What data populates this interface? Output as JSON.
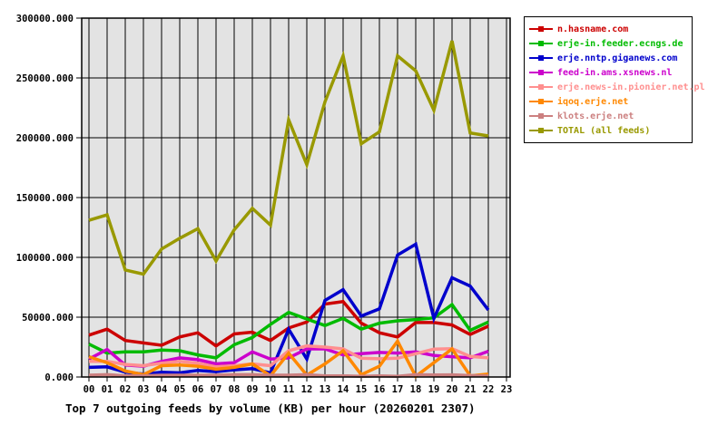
{
  "chart_data": {
    "type": "line",
    "title": "Top 7 outgoing feeds by volume (KB) per hour (20260201 2307)",
    "xlabel": "",
    "ylabel": "",
    "ylim": [
      0,
      300000
    ],
    "grid": true,
    "legend_position": "right",
    "plot_bg": "#e3e3e3",
    "grid_color": "#000000",
    "x_tick_labels": [
      "00",
      "01",
      "02",
      "03",
      "04",
      "05",
      "06",
      "07",
      "08",
      "09",
      "10",
      "11",
      "12",
      "13",
      "14",
      "15",
      "16",
      "17",
      "18",
      "19",
      "20",
      "21",
      "22",
      "23"
    ],
    "y_tick_labels": [
      "0.000",
      "50000.000",
      "100000.000",
      "150000.000",
      "200000.000",
      "250000.000",
      "300000.000"
    ],
    "y_tick_values": [
      0,
      50000,
      100000,
      150000,
      200000,
      250000,
      300000
    ],
    "series": [
      {
        "name": "n.hasname.com",
        "color": "#cc0000",
        "values": [
          35000,
          40000,
          30500,
          28500,
          26500,
          33500,
          37000,
          26000,
          36000,
          37500,
          30500,
          41000,
          46000,
          61000,
          63000,
          45000,
          37000,
          33500,
          45500,
          45500,
          43500,
          35500,
          42500
        ]
      },
      {
        "name": "erje-in.feeder.ecngs.de",
        "color": "#00bb00",
        "values": [
          27500,
          20000,
          21000,
          21000,
          22500,
          22000,
          18500,
          16000,
          27000,
          33000,
          44000,
          54000,
          48500,
          43000,
          49000,
          40000,
          45000,
          47000,
          48000,
          49500,
          60500,
          39000,
          46000
        ]
      },
      {
        "name": "erje.nntp.giganews.com",
        "color": "#0000cc",
        "values": [
          8000,
          8500,
          4000,
          2500,
          4000,
          3500,
          5500,
          4500,
          6000,
          7000,
          3500,
          40000,
          15000,
          64000,
          73000,
          51000,
          57000,
          102000,
          111000,
          49000,
          83000,
          76000,
          56000
        ]
      },
      {
        "name": "feed-in.ams.xsnews.nl",
        "color": "#cc00cc",
        "values": [
          15000,
          23000,
          10000,
          9000,
          13000,
          16000,
          14500,
          11000,
          12000,
          21000,
          15000,
          16000,
          23500,
          23500,
          18500,
          19500,
          20500,
          20000,
          21000,
          18000,
          17000,
          16000,
          21500
        ]
      },
      {
        "name": "erje.news-in.pionier.net.pl",
        "color": "#ff8f8f",
        "values": [
          13000,
          13000,
          10500,
          9500,
          11500,
          13000,
          11500,
          8500,
          9500,
          11000,
          9500,
          22000,
          26000,
          25000,
          23500,
          15700,
          15200,
          15700,
          19500,
          23300,
          23700,
          17200,
          16000
        ]
      },
      {
        "name": "iqoq.erje.net",
        "color": "#ff8800",
        "values": [
          17000,
          12000,
          5000,
          2000,
          9500,
          10000,
          9000,
          6500,
          8000,
          11000,
          1000,
          20000,
          1500,
          11000,
          22000,
          2000,
          9000,
          30000,
          500,
          12000,
          23500,
          1000,
          2500
        ]
      },
      {
        "name": "klots.erje.net",
        "color": "#cc8080",
        "values": [
          1500,
          2000,
          1000,
          1000,
          1500,
          1500,
          1500,
          1500,
          2000,
          2000,
          1500,
          1500,
          2000,
          1000,
          1000,
          500,
          1000,
          500,
          2000,
          1700,
          1800,
          1200,
          800
        ]
      },
      {
        "name": "TOTAL (all feeds)",
        "color": "#999900",
        "values": [
          131000,
          135500,
          89500,
          86000,
          107000,
          116000,
          124000,
          97000,
          123000,
          141000,
          127000,
          215000,
          177500,
          230000,
          268500,
          195000,
          205000,
          268500,
          256000,
          223000,
          281000,
          204000,
          201500
        ]
      }
    ]
  }
}
